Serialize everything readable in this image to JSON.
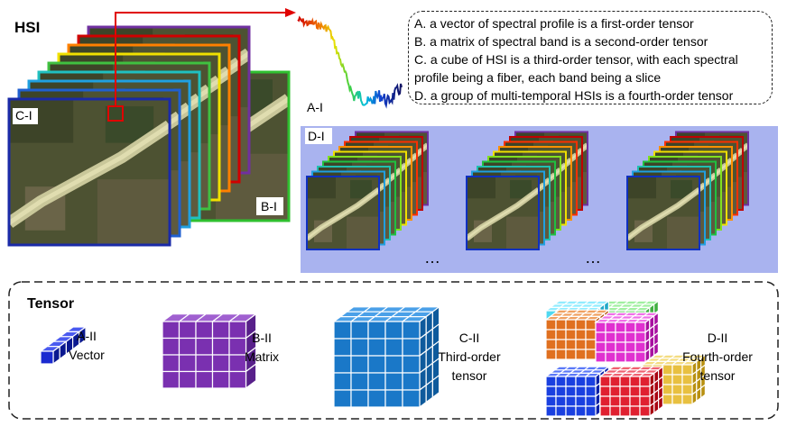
{
  "hsi": {
    "title": "HSI",
    "front_label": "C-I",
    "band_label": "B-I"
  },
  "spectrum": {
    "label": "A-I"
  },
  "definitions": [
    "A. a vector of spectral profile is a first-order tensor",
    "B. a matrix of spectral band is a second-order tensor",
    "C. a cube of HSI is a third-order tensor, with each spectral profile being a fiber, each band being a slice",
    "D. a group of multi-temporal HSIs is a fourth-order tensor"
  ],
  "multitemporal": {
    "label": "D-I",
    "ellipsis": [
      "…",
      "…"
    ]
  },
  "tensor": {
    "title": "Tensor",
    "items": [
      {
        "label": "A-II",
        "lines": [
          "Vector"
        ]
      },
      {
        "label": "B-II",
        "lines": [
          "Matrix"
        ]
      },
      {
        "label": "C-II",
        "lines": [
          "Third-order",
          "tensor"
        ]
      },
      {
        "label": "D-II",
        "lines": [
          "Fourth-order",
          "tensor"
        ]
      }
    ]
  }
}
